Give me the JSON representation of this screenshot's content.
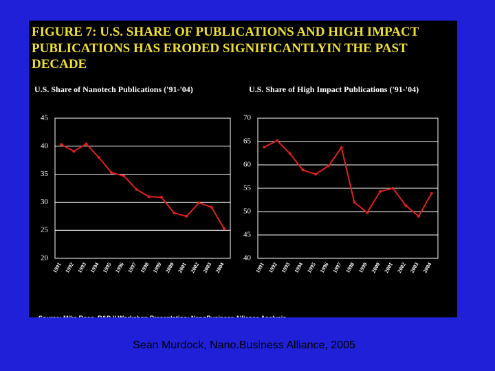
{
  "slide": {
    "title_lines": [
      "FIGURE 7: U.S. SHARE OF PUBLICATIONS AND HIGH IMPACT",
      "PUBLICATIONS HAS ERODED SIGNIFICANTLYIN THE PAST",
      "DECADE"
    ],
    "source": "Source: Mike Roco, R&D II Workshop Presentation; NanoBusiness Alliance Analysis",
    "footer": "Sean Murdock, Nano.Business Alliance, 2005"
  },
  "chart_data": [
    {
      "type": "line",
      "title": "U.S. Share of Nanotech Publications ('91-'04)",
      "categories": [
        "1991",
        "1992",
        "1993",
        "1994",
        "1995",
        "1996",
        "1997",
        "1998",
        "1999",
        "2000",
        "2001",
        "2002",
        "2003",
        "2004"
      ],
      "values": [
        40.3,
        39.1,
        40.4,
        38.0,
        35.3,
        34.7,
        32.3,
        31.0,
        30.9,
        28.1,
        27.5,
        29.9,
        29.1,
        25.3
      ],
      "color": "#e0201c",
      "ylim": [
        20,
        45
      ],
      "yticks": [
        20,
        25,
        30,
        35,
        40,
        45
      ],
      "grid": true
    },
    {
      "type": "line",
      "title": "U.S. Share of High Impact Publications ('91-'04)",
      "categories": [
        "1991",
        "1992",
        "1993",
        "1994",
        "1995",
        "1996",
        "1997",
        "1998",
        "1999",
        "2000",
        "2001",
        "2002",
        "2003",
        "2004"
      ],
      "values": [
        63.8,
        65.2,
        62.4,
        58.9,
        58.0,
        59.8,
        63.7,
        52.0,
        49.8,
        54.3,
        55.0,
        51.3,
        49.0,
        53.9
      ],
      "color": "#e0201c",
      "ylim": [
        40,
        70
      ],
      "yticks": [
        40,
        45,
        50,
        55,
        60,
        65,
        70
      ],
      "grid": true
    }
  ]
}
